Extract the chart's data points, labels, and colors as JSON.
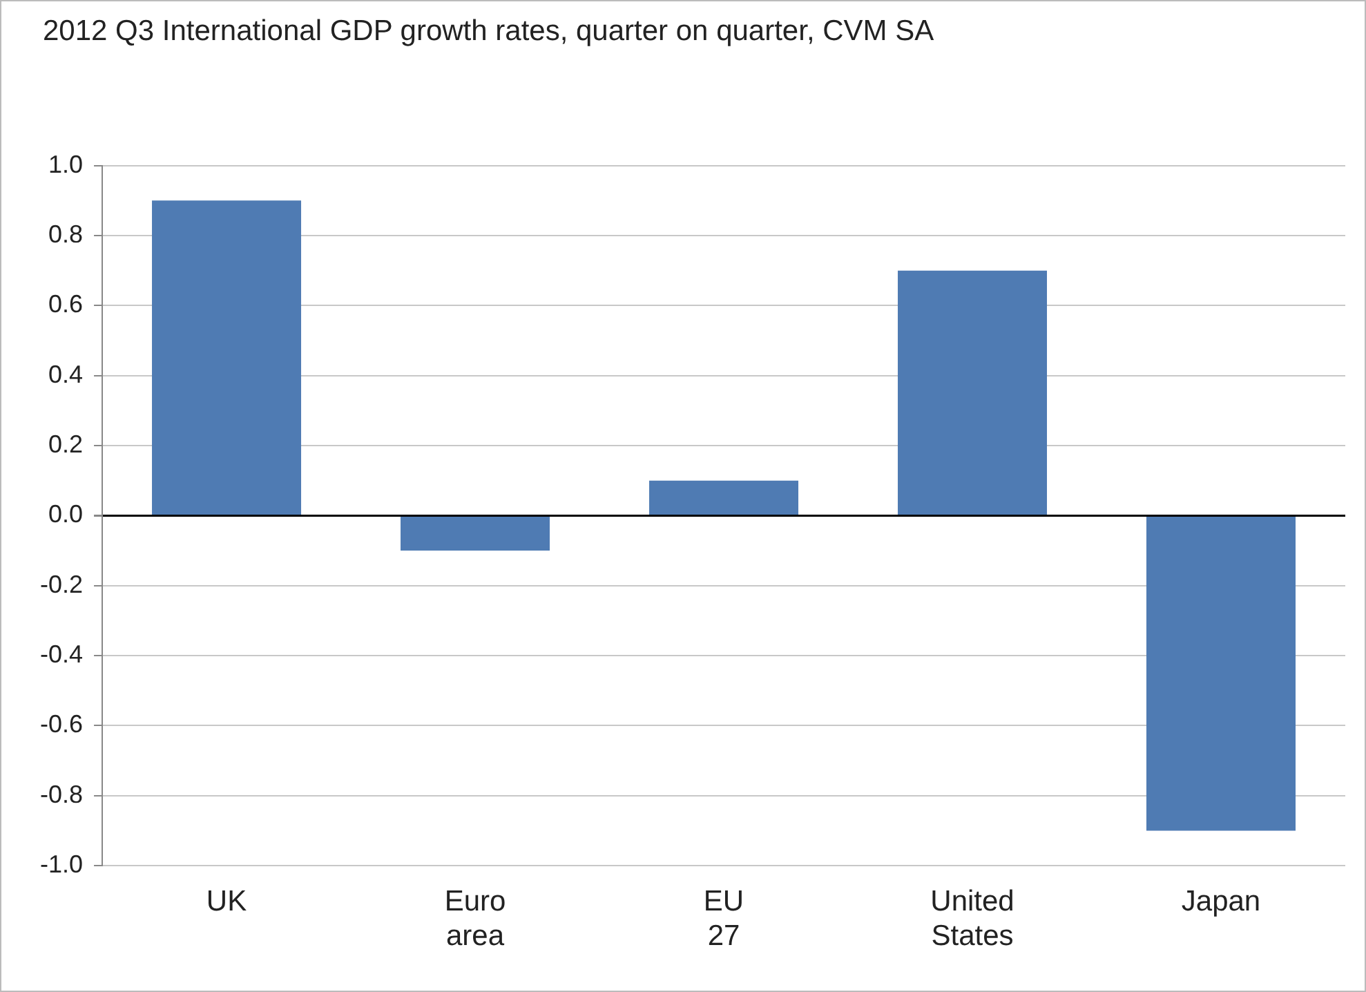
{
  "chart_data": {
    "type": "bar",
    "title": "2012 Q3 International GDP growth rates, quarter on quarter, CVM SA",
    "categories": [
      "UK",
      "Euro area",
      "EU 27",
      "United States",
      "Japan"
    ],
    "values": [
      0.9,
      -0.1,
      0.1,
      0.7,
      -0.9
    ],
    "color": "#4f7bb3",
    "ylim": [
      -1.0,
      1.0
    ],
    "yticks": [
      {
        "value": -1.0,
        "label": "-1.0"
      },
      {
        "value": -0.8,
        "label": "-0.8"
      },
      {
        "value": -0.6,
        "label": "-0.6"
      },
      {
        "value": -0.4,
        "label": "-0.4"
      },
      {
        "value": -0.2,
        "label": "-0.2"
      },
      {
        "value": 0,
        "label": "0.0"
      },
      {
        "value": 0.2,
        "label": "0.2"
      },
      {
        "value": 0.4,
        "label": "0.4"
      },
      {
        "value": 0.6,
        "label": "0.6"
      },
      {
        "value": 0.8,
        "label": "0.8"
      },
      {
        "value": 1.0,
        "label": "1.0"
      }
    ],
    "grid": "y",
    "legend": false
  }
}
